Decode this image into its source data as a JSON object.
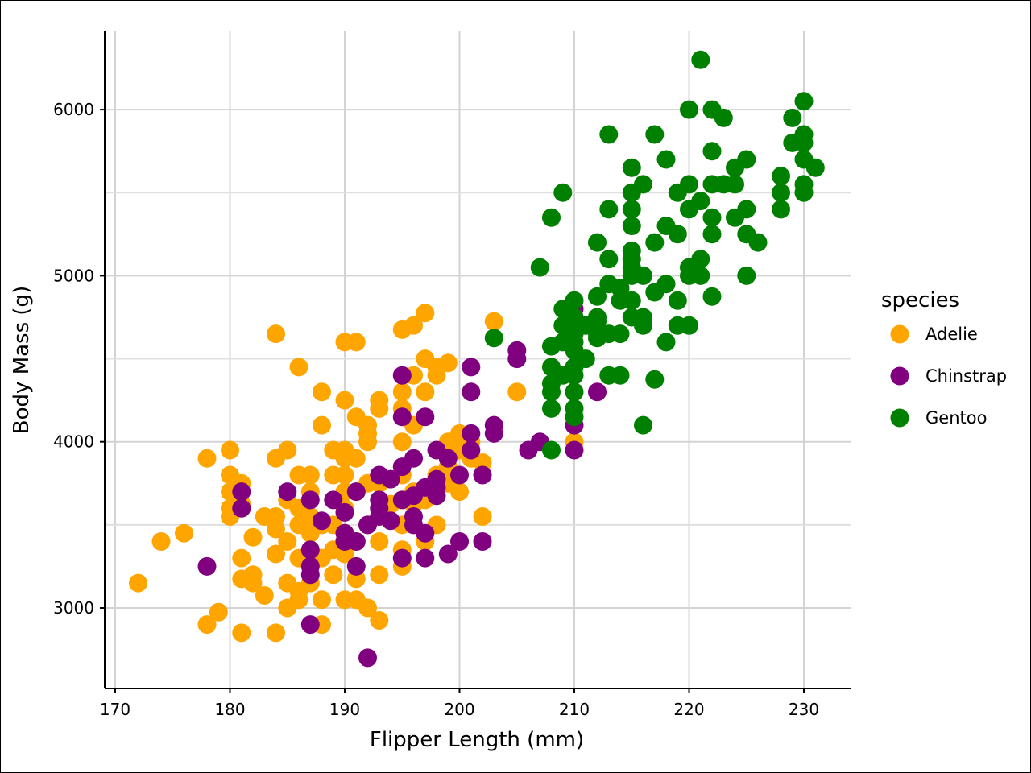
{
  "chart_data": {
    "type": "scatter",
    "title": "",
    "xlabel": "Flipper Length (mm)",
    "ylabel": "Body Mass (g)",
    "xlim": [
      169.1,
      234.0
    ],
    "ylim": [
      2530,
      6480
    ],
    "x_ticks": [
      170,
      180,
      190,
      200,
      210,
      220,
      230
    ],
    "y_ticks": [
      3000,
      4000,
      5000,
      6000
    ],
    "y_minor_gridlines": [
      3500,
      4500,
      5500
    ],
    "grid": true,
    "legend": {
      "title": "species",
      "placement": "right"
    },
    "series": [
      {
        "name": "Adelie",
        "color": "#FFA500",
        "points": [
          [
            172,
            3150
          ],
          [
            174,
            3400
          ],
          [
            176,
            3450
          ],
          [
            178,
            2900
          ],
          [
            178,
            3900
          ],
          [
            179,
            2975
          ],
          [
            180,
            3550
          ],
          [
            180,
            3600
          ],
          [
            180,
            3700
          ],
          [
            180,
            3800
          ],
          [
            180,
            3950
          ],
          [
            181,
            2850
          ],
          [
            181,
            3175
          ],
          [
            181,
            3300
          ],
          [
            181,
            3600
          ],
          [
            181,
            3625
          ],
          [
            181,
            3750
          ],
          [
            182,
            3200
          ],
          [
            182,
            3150
          ],
          [
            182,
            3425
          ],
          [
            183,
            3075
          ],
          [
            183,
            3550
          ],
          [
            184,
            2850
          ],
          [
            184,
            3325
          ],
          [
            184,
            3475
          ],
          [
            184,
            3550
          ],
          [
            184,
            3900
          ],
          [
            184,
            4650
          ],
          [
            185,
            3000
          ],
          [
            185,
            3150
          ],
          [
            185,
            3400
          ],
          [
            185,
            3650
          ],
          [
            185,
            3950
          ],
          [
            186,
            3050
          ],
          [
            186,
            3100
          ],
          [
            186,
            3300
          ],
          [
            186,
            3500
          ],
          [
            186,
            3600
          ],
          [
            186,
            3800
          ],
          [
            186,
            4450
          ],
          [
            187,
            3150
          ],
          [
            187,
            3250
          ],
          [
            187,
            3450
          ],
          [
            187,
            3550
          ],
          [
            187,
            3700
          ],
          [
            187,
            3800
          ],
          [
            188,
            2900
          ],
          [
            188,
            3050
          ],
          [
            188,
            3300
          ],
          [
            188,
            3500
          ],
          [
            188,
            4100
          ],
          [
            188,
            4300
          ],
          [
            189,
            3200
          ],
          [
            189,
            3350
          ],
          [
            189,
            3500
          ],
          [
            189,
            3800
          ],
          [
            189,
            3950
          ],
          [
            190,
            3050
          ],
          [
            190,
            3325
          ],
          [
            190,
            3400
          ],
          [
            190,
            3450
          ],
          [
            190,
            3600
          ],
          [
            190,
            3700
          ],
          [
            190,
            3800
          ],
          [
            190,
            3900
          ],
          [
            190,
            3950
          ],
          [
            190,
            4250
          ],
          [
            190,
            4600
          ],
          [
            191,
            3050
          ],
          [
            191,
            3175
          ],
          [
            191,
            3400
          ],
          [
            191,
            3700
          ],
          [
            191,
            3900
          ],
          [
            191,
            4150
          ],
          [
            191,
            4600
          ],
          [
            192,
            3000
          ],
          [
            192,
            3500
          ],
          [
            192,
            3750
          ],
          [
            192,
            4000
          ],
          [
            192,
            4050
          ],
          [
            192,
            4100
          ],
          [
            193,
            2925
          ],
          [
            193,
            3200
          ],
          [
            193,
            3400
          ],
          [
            193,
            3750
          ],
          [
            193,
            4200
          ],
          [
            193,
            4250
          ],
          [
            194,
            3625
          ],
          [
            195,
            3250
          ],
          [
            195,
            3350
          ],
          [
            195,
            3500
          ],
          [
            195,
            3650
          ],
          [
            195,
            3800
          ],
          [
            195,
            4000
          ],
          [
            195,
            4200
          ],
          [
            195,
            4300
          ],
          [
            195,
            4675
          ],
          [
            196,
            3625
          ],
          [
            196,
            3700
          ],
          [
            196,
            4100
          ],
          [
            196,
            4400
          ],
          [
            196,
            4700
          ],
          [
            197,
            3400
          ],
          [
            197,
            3650
          ],
          [
            197,
            4300
          ],
          [
            197,
            4500
          ],
          [
            197,
            4775
          ],
          [
            198,
            3500
          ],
          [
            198,
            3800
          ],
          [
            198,
            4400
          ],
          [
            198,
            4450
          ],
          [
            199,
            3750
          ],
          [
            199,
            3850
          ],
          [
            199,
            4000
          ],
          [
            199,
            4475
          ],
          [
            200,
            3700
          ],
          [
            200,
            3950
          ],
          [
            200,
            4050
          ],
          [
            201,
            3900
          ],
          [
            201,
            4000
          ],
          [
            202,
            3550
          ],
          [
            202,
            3875
          ],
          [
            203,
            4725
          ],
          [
            205,
            4300
          ],
          [
            210,
            4000
          ]
        ]
      },
      {
        "name": "Chinstrap",
        "color": "#800080",
        "points": [
          [
            178,
            3250
          ],
          [
            181,
            3600
          ],
          [
            181,
            3700
          ],
          [
            185,
            3700
          ],
          [
            187,
            2900
          ],
          [
            187,
            3200
          ],
          [
            187,
            3250
          ],
          [
            187,
            3350
          ],
          [
            187,
            3650
          ],
          [
            188,
            3525
          ],
          [
            189,
            3650
          ],
          [
            190,
            3400
          ],
          [
            190,
            3450
          ],
          [
            190,
            3575
          ],
          [
            191,
            3250
          ],
          [
            191,
            3400
          ],
          [
            191,
            3700
          ],
          [
            192,
            2700
          ],
          [
            192,
            3500
          ],
          [
            193,
            3550
          ],
          [
            193,
            3600
          ],
          [
            193,
            3650
          ],
          [
            193,
            3800
          ],
          [
            194,
            3525
          ],
          [
            194,
            3775
          ],
          [
            195,
            3300
          ],
          [
            195,
            3650
          ],
          [
            195,
            3850
          ],
          [
            195,
            4150
          ],
          [
            195,
            4400
          ],
          [
            196,
            3500
          ],
          [
            196,
            3550
          ],
          [
            196,
            3675
          ],
          [
            196,
            3900
          ],
          [
            197,
            3300
          ],
          [
            197,
            3450
          ],
          [
            197,
            3725
          ],
          [
            197,
            4150
          ],
          [
            198,
            3675
          ],
          [
            198,
            3725
          ],
          [
            198,
            3775
          ],
          [
            198,
            3950
          ],
          [
            199,
            3325
          ],
          [
            199,
            3900
          ],
          [
            200,
            3400
          ],
          [
            200,
            3800
          ],
          [
            201,
            3950
          ],
          [
            201,
            4050
          ],
          [
            201,
            4300
          ],
          [
            201,
            4450
          ],
          [
            202,
            3400
          ],
          [
            202,
            3800
          ],
          [
            203,
            4050
          ],
          [
            203,
            4100
          ],
          [
            205,
            4500
          ],
          [
            205,
            4550
          ],
          [
            206,
            3950
          ],
          [
            207,
            4000
          ],
          [
            210,
            3950
          ],
          [
            210,
            4100
          ],
          [
            210,
            4800
          ],
          [
            212,
            4300
          ]
        ]
      },
      {
        "name": "Gentoo",
        "color": "#008000",
        "points": [
          [
            203,
            4625
          ],
          [
            207,
            5050
          ],
          [
            208,
            3950
          ],
          [
            208,
            4200
          ],
          [
            208,
            4300
          ],
          [
            208,
            4350
          ],
          [
            208,
            4450
          ],
          [
            208,
            4575
          ],
          [
            208,
            5350
          ],
          [
            209,
            4400
          ],
          [
            209,
            4600
          ],
          [
            209,
            4700
          ],
          [
            209,
            4800
          ],
          [
            209,
            5500
          ],
          [
            210,
            4150
          ],
          [
            210,
            4200
          ],
          [
            210,
            4300
          ],
          [
            210,
            4400
          ],
          [
            210,
            4450
          ],
          [
            210,
            4550
          ],
          [
            210,
            4600
          ],
          [
            210,
            4650
          ],
          [
            210,
            4700
          ],
          [
            210,
            4750
          ],
          [
            210,
            4850
          ],
          [
            211,
            4500
          ],
          [
            211,
            4700
          ],
          [
            212,
            4625
          ],
          [
            212,
            4650
          ],
          [
            212,
            4725
          ],
          [
            212,
            4750
          ],
          [
            212,
            4875
          ],
          [
            212,
            5200
          ],
          [
            213,
            4400
          ],
          [
            213,
            4650
          ],
          [
            213,
            4950
          ],
          [
            213,
            5100
          ],
          [
            213,
            5400
          ],
          [
            213,
            5850
          ],
          [
            214,
            4400
          ],
          [
            214,
            4650
          ],
          [
            214,
            4850
          ],
          [
            214,
            4925
          ],
          [
            215,
            4750
          ],
          [
            215,
            4850
          ],
          [
            215,
            5000
          ],
          [
            215,
            5050
          ],
          [
            215,
            5100
          ],
          [
            215,
            5150
          ],
          [
            215,
            5300
          ],
          [
            215,
            5400
          ],
          [
            215,
            5500
          ],
          [
            215,
            5650
          ],
          [
            216,
            4100
          ],
          [
            216,
            4700
          ],
          [
            216,
            4750
          ],
          [
            216,
            5000
          ],
          [
            216,
            5550
          ],
          [
            217,
            4375
          ],
          [
            217,
            4900
          ],
          [
            217,
            5200
          ],
          [
            217,
            5850
          ],
          [
            218,
            4600
          ],
          [
            218,
            4950
          ],
          [
            218,
            5300
          ],
          [
            218,
            5700
          ],
          [
            219,
            4700
          ],
          [
            219,
            4850
          ],
          [
            219,
            5250
          ],
          [
            219,
            5500
          ],
          [
            220,
            4700
          ],
          [
            220,
            5000
          ],
          [
            220,
            5050
          ],
          [
            220,
            5400
          ],
          [
            220,
            5550
          ],
          [
            220,
            6000
          ],
          [
            221,
            5000
          ],
          [
            221,
            5100
          ],
          [
            221,
            5450
          ],
          [
            221,
            6300
          ],
          [
            222,
            4875
          ],
          [
            222,
            5250
          ],
          [
            222,
            5350
          ],
          [
            222,
            5550
          ],
          [
            222,
            5750
          ],
          [
            222,
            6000
          ],
          [
            223,
            5550
          ],
          [
            223,
            5950
          ],
          [
            224,
            5350
          ],
          [
            224,
            5550
          ],
          [
            224,
            5650
          ],
          [
            225,
            5000
          ],
          [
            225,
            5250
          ],
          [
            225,
            5400
          ],
          [
            225,
            5700
          ],
          [
            226,
            5200
          ],
          [
            228,
            5400
          ],
          [
            228,
            5500
          ],
          [
            228,
            5600
          ],
          [
            229,
            5800
          ],
          [
            229,
            5950
          ],
          [
            230,
            5500
          ],
          [
            230,
            5550
          ],
          [
            230,
            5700
          ],
          [
            230,
            5800
          ],
          [
            230,
            5850
          ],
          [
            230,
            6050
          ],
          [
            231,
            5650
          ]
        ]
      }
    ]
  }
}
